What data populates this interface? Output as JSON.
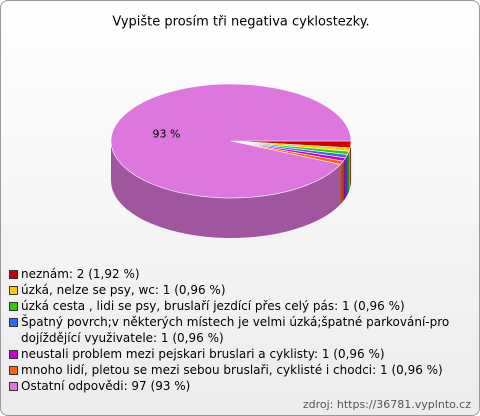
{
  "chart_data": {
    "type": "pie",
    "title": "Vypište prosím tři negativa cyklostezky.",
    "categories": [
      "neznám: 2 (1,92 %)",
      "úzká, nelze se psy, wc: 1 (0,96 %)",
      "úzká cesta , lidi se psy, bruslaří jezdící přes celý pás: 1 (0,96 %)",
      "Špatný povrch;v některých místech je velmi úzká;špatné parkování-pro dojíždějící využivatele: 1 (0,96 %)",
      "neustali problem mezi pejskari bruslari a cyklisty: 1 (0,96 %)",
      "mnoho lidí, pletou se mezi sebou bruslaři, cyklisté i chodci: 1 (0,96 %)",
      "Ostatní odpovědi: 97 (93 %)"
    ],
    "values": [
      1.92,
      0.96,
      0.96,
      0.96,
      0.96,
      0.96,
      93
    ],
    "value_labels": [
      null,
      null,
      null,
      null,
      null,
      null,
      "93 %"
    ],
    "colors": [
      "#cc0000",
      "#ffcc00",
      "#33cc00",
      "#3366ff",
      "#cc00cc",
      "#ff6600",
      "#dd77dd"
    ],
    "source": "zdroj: https://36781.vyplnto.cz"
  }
}
